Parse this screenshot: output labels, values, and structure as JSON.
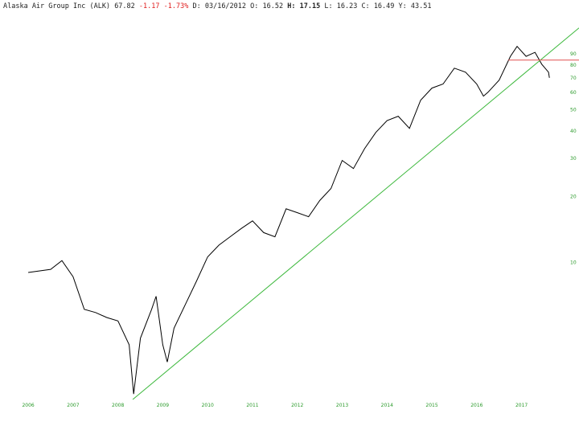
{
  "chart_data": {
    "type": "line",
    "header": {
      "name": "Alaska Air Group Inc (ALK)",
      "last": "67.82",
      "change": "-1.17",
      "change_pct": "-1.73%",
      "d_label": "D:",
      "date": "03/16/2012",
      "o_label": "O:",
      "open": "16.52",
      "h_label": "H:",
      "high": "17.15",
      "l_label": "L:",
      "low": "16.23",
      "c_label": "C:",
      "close": "16.49",
      "y_label": "Y:",
      "y_value": "43.51"
    },
    "x": [
      2006.0,
      2006.5,
      2006.75,
      2007.0,
      2007.25,
      2007.5,
      2007.75,
      2008.0,
      2008.25,
      2008.35,
      2008.5,
      2008.75,
      2008.85,
      2009.0,
      2009.1,
      2009.25,
      2009.5,
      2009.75,
      2010.0,
      2010.25,
      2010.5,
      2010.75,
      2011.0,
      2011.25,
      2011.5,
      2011.75,
      2012.0,
      2012.25,
      2012.5,
      2012.75,
      2013.0,
      2013.25,
      2013.5,
      2013.75,
      2014.0,
      2014.25,
      2014.5,
      2014.75,
      2015.0,
      2015.25,
      2015.5,
      2015.75,
      2016.0,
      2016.15,
      2016.25,
      2016.5,
      2016.75,
      2016.9,
      2017.1,
      2017.3,
      2017.45,
      2017.6,
      2017.62
    ],
    "values": [
      9.0,
      9.3,
      10.2,
      8.6,
      6.1,
      5.9,
      5.6,
      5.4,
      4.2,
      2.5,
      4.5,
      6.1,
      7.0,
      4.2,
      3.5,
      5.0,
      6.4,
      8.2,
      10.6,
      12.0,
      13.1,
      14.3,
      15.5,
      13.7,
      13.1,
      17.6,
      16.9,
      16.2,
      19.2,
      21.8,
      29.3,
      26.9,
      33.2,
      39.4,
      44.6,
      46.7,
      41.1,
      55.3,
      62.8,
      65.6,
      77.5,
      74.3,
      65.6,
      57.7,
      60.1,
      68.3,
      87.8,
      97.5,
      87.8,
      91.6,
      80.8,
      74.3,
      70.0
    ],
    "color": "#000000",
    "lines": [
      {
        "x": [
          2008.33,
          2018.28
        ],
        "y": [
          2.36,
          118.4
        ],
        "color": "#3cb83c"
      },
      {
        "x": [
          2016.7,
          2018.28
        ],
        "y": [
          84.4,
          84.4
        ],
        "color": "#e05050"
      }
    ],
    "log_scale": true,
    "xlim": [
      2005.37,
      2018.28
    ],
    "ylim": [
      2.3,
      140
    ],
    "xticks": [
      2006,
      2007,
      2008,
      2009,
      2010,
      2011,
      2012,
      2013,
      2014,
      2015,
      2016,
      2017
    ],
    "yticks": [
      10,
      20,
      30,
      40,
      50,
      60,
      70,
      80,
      90
    ],
    "tick_color": "#2a9a2a"
  }
}
